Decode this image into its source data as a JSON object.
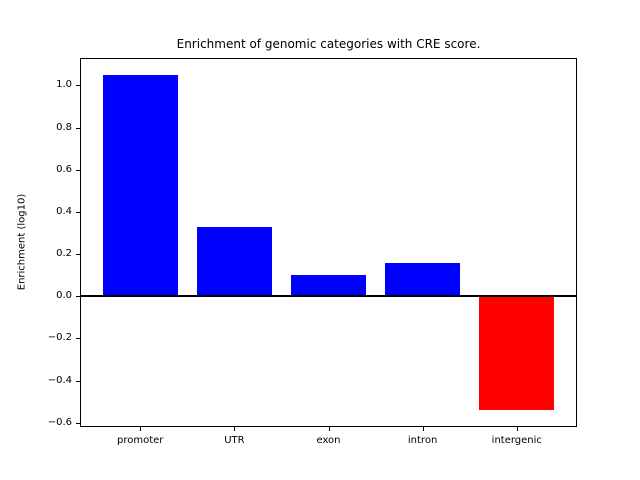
{
  "figure": {
    "background": "#ffffff",
    "frame_color": "#000000"
  },
  "chart_data": {
    "type": "bar",
    "title": "Enrichment of genomic categories with CRE score.",
    "xlabel": "",
    "ylabel": "Enrichment (log10)",
    "categories": [
      "promoter",
      "UTR",
      "exon",
      "intron",
      "intergenic"
    ],
    "values": [
      1.05,
      0.33,
      0.1,
      0.16,
      -0.54
    ],
    "bar_colors": [
      "#0000ff",
      "#0000ff",
      "#0000ff",
      "#0000ff",
      "#ff0000"
    ],
    "bar_width": 0.8,
    "yticks": [
      -0.6,
      -0.4,
      -0.2,
      0.0,
      0.2,
      0.4,
      0.6,
      0.8,
      1.0
    ],
    "ylim": [
      -0.62,
      1.13
    ],
    "xlim": [
      -0.64,
      4.64
    ],
    "grid": false,
    "legend": null,
    "zero_line": {
      "value": 0,
      "color": "#000000",
      "thickness_px": 2
    }
  }
}
